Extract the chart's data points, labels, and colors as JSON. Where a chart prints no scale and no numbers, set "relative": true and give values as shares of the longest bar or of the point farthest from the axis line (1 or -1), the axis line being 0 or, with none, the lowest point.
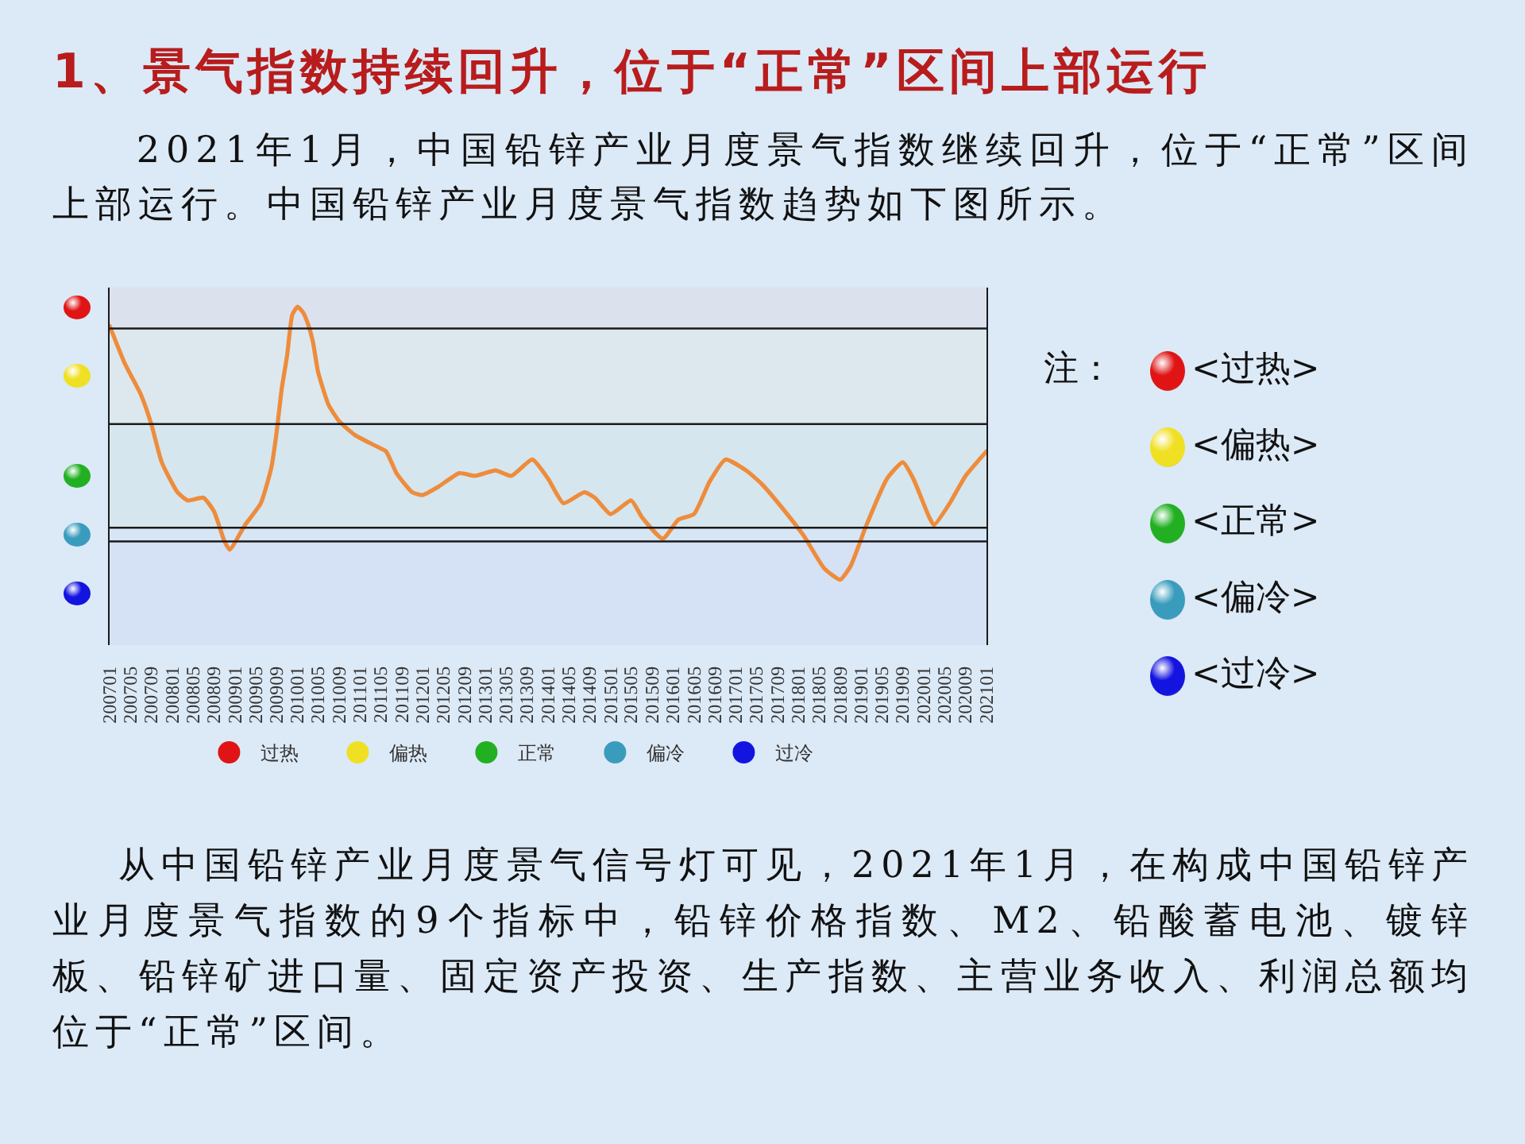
{
  "chart_data": {
    "type": "line",
    "title": "1、景气指数持续回升，位于“正常”区间上部运行",
    "subtitle": "2021年1月，中国铅锌产业月度景气指数继续回升，位于“正常”区间上部运行。中国铅锌产业月度景气指数趋势如下图所示。",
    "annotations": [
      "注：",
      "<过热>",
      "<偏热>",
      "<正常>",
      "<偏冷>",
      "<过冷>",
      "从中国铅锌产业月度景气信号灯可见，2021年1月，在构成中国铅锌产业月度景气指数的9个指标中，铅锌价格指数、M2、铅酸蓄电池、镀锌板、铅锌矿进口量、固定资产投资、生产指数、主营业务收入、利润总额均位于“正常”区间。"
    ],
    "relative": true,
    "color": "#ee8c3c",
    "legend": "bottom",
    "x": [
      "2007-01",
      "2007-04",
      "2007-07",
      "2007-09",
      "2007-11",
      "2008-02",
      "2008-04",
      "2008-07",
      "2008-09",
      "2008-11",
      "2008-12",
      "2009-03",
      "2009-06",
      "2009-08",
      "2009-09",
      "2009-10",
      "2009-11",
      "2009-12",
      "2010-01",
      "2010-02",
      "2010-03",
      "2010-04",
      "2010-05",
      "2010-07",
      "2010-09",
      "2010-12",
      "2011-04",
      "2011-06",
      "2011-08",
      "2011-11",
      "2012-01",
      "2012-04",
      "2012-08",
      "2012-11",
      "2013-03",
      "2013-06",
      "2013-10",
      "2014-01",
      "2014-04",
      "2014-08",
      "2014-10",
      "2015-01",
      "2015-05",
      "2015-07",
      "2015-11",
      "2016-02",
      "2016-05",
      "2016-08",
      "2016-11",
      "2017-03",
      "2017-06",
      "2017-10",
      "2018-02",
      "2018-06",
      "2018-09",
      "2018-11",
      "2019-02",
      "2019-06",
      "2019-09",
      "2019-11",
      "2020-02",
      "2020-03",
      "2020-06",
      "2020-09",
      "2021-01"
    ],
    "values": [
      0.93,
      0.79,
      0.68,
      0.57,
      0.43,
      0.32,
      0.29,
      0.3,
      0.25,
      0.14,
      0.11,
      0.2,
      0.28,
      0.41,
      0.54,
      0.7,
      0.82,
      0.97,
      1,
      0.98,
      0.94,
      0.87,
      0.76,
      0.64,
      0.58,
      0.53,
      0.49,
      0.47,
      0.39,
      0.32,
      0.31,
      0.34,
      0.39,
      0.38,
      0.4,
      0.38,
      0.44,
      0.37,
      0.28,
      0.32,
      0.3,
      0.24,
      0.29,
      0.23,
      0.15,
      0.22,
      0.24,
      0.36,
      0.44,
      0.4,
      0.35,
      0.26,
      0.16,
      0.04,
      0,
      0.05,
      0.2,
      0.37,
      0.43,
      0.37,
      0.23,
      0.2,
      0.28,
      0.38,
      0.47
    ],
    "xlim": [
      "2007-01",
      "2021-01"
    ],
    "xticks": [
      {
        "value": "2007-01",
        "label": "200701"
      },
      {
        "value": "2007-05",
        "label": "200705"
      },
      {
        "value": "2007-09",
        "label": "200709"
      },
      {
        "value": "2008-01",
        "label": "200801"
      },
      {
        "value": "2008-05",
        "label": "200805"
      },
      {
        "value": "2008-09",
        "label": "200809"
      },
      {
        "value": "2009-01",
        "label": "200901"
      },
      {
        "value": "2009-05",
        "label": "200905"
      },
      {
        "value": "2009-09",
        "label": "200909"
      },
      {
        "value": "2010-01",
        "label": "201001"
      },
      {
        "value": "2010-05",
        "label": "201005"
      },
      {
        "value": "2010-09",
        "label": "201009"
      },
      {
        "value": "2011-01",
        "label": "201101"
      },
      {
        "value": "2011-05",
        "label": "201105"
      },
      {
        "value": "2011-09",
        "label": "201109"
      },
      {
        "value": "2012-01",
        "label": "201201"
      },
      {
        "value": "2012-05",
        "label": "201205"
      },
      {
        "value": "2012-09",
        "label": "201209"
      },
      {
        "value": "2013-01",
        "label": "201301"
      },
      {
        "value": "2013-05",
        "label": "201305"
      },
      {
        "value": "2013-09",
        "label": "201309"
      },
      {
        "value": "2014-01",
        "label": "201401"
      },
      {
        "value": "2014-05",
        "label": "201405"
      },
      {
        "value": "2014-09",
        "label": "201409"
      },
      {
        "value": "2015-01",
        "label": "201501"
      },
      {
        "value": "2015-05",
        "label": "201505"
      },
      {
        "value": "2015-09",
        "label": "201509"
      },
      {
        "value": "2016-01",
        "label": "201601"
      },
      {
        "value": "2016-05",
        "label": "201605"
      },
      {
        "value": "2016-09",
        "label": "201609"
      },
      {
        "value": "2017-01",
        "label": "201701"
      },
      {
        "value": "2017-05",
        "label": "201705"
      },
      {
        "value": "2017-09",
        "label": "201709"
      },
      {
        "value": "2018-01",
        "label": "201801"
      },
      {
        "value": "2018-05",
        "label": "201805"
      },
      {
        "value": "2018-09",
        "label": "201809"
      },
      {
        "value": "2019-01",
        "label": "201901"
      },
      {
        "value": "2019-05",
        "label": "201905"
      },
      {
        "value": "2019-09",
        "label": "201909"
      },
      {
        "value": "2020-01",
        "label": "202001"
      },
      {
        "value": "2020-05",
        "label": "202005"
      },
      {
        "value": "2020-09",
        "label": "202009"
      },
      {
        "value": "2021-01",
        "label": "202101"
      }
    ],
    "bands": [
      {
        "axis": "y",
        "from": 0.92,
        "to": 1.07,
        "label": "过热",
        "color": "#e01414"
      },
      {
        "axis": "y",
        "from": 0.57,
        "to": 0.92,
        "label": "偏热",
        "color": "#f0e024"
      },
      {
        "axis": "y",
        "from": 0.19,
        "to": 0.57,
        "label": "正常",
        "color": "#22b022"
      },
      {
        "axis": "y",
        "from": 0.14,
        "to": 0.19,
        "label": "偏冷",
        "color": "#3a9cbc"
      },
      {
        "axis": "y",
        "from": -0.24,
        "to": 0.14,
        "label": "过冷",
        "color": "#1414e0"
      }
    ]
  }
}
